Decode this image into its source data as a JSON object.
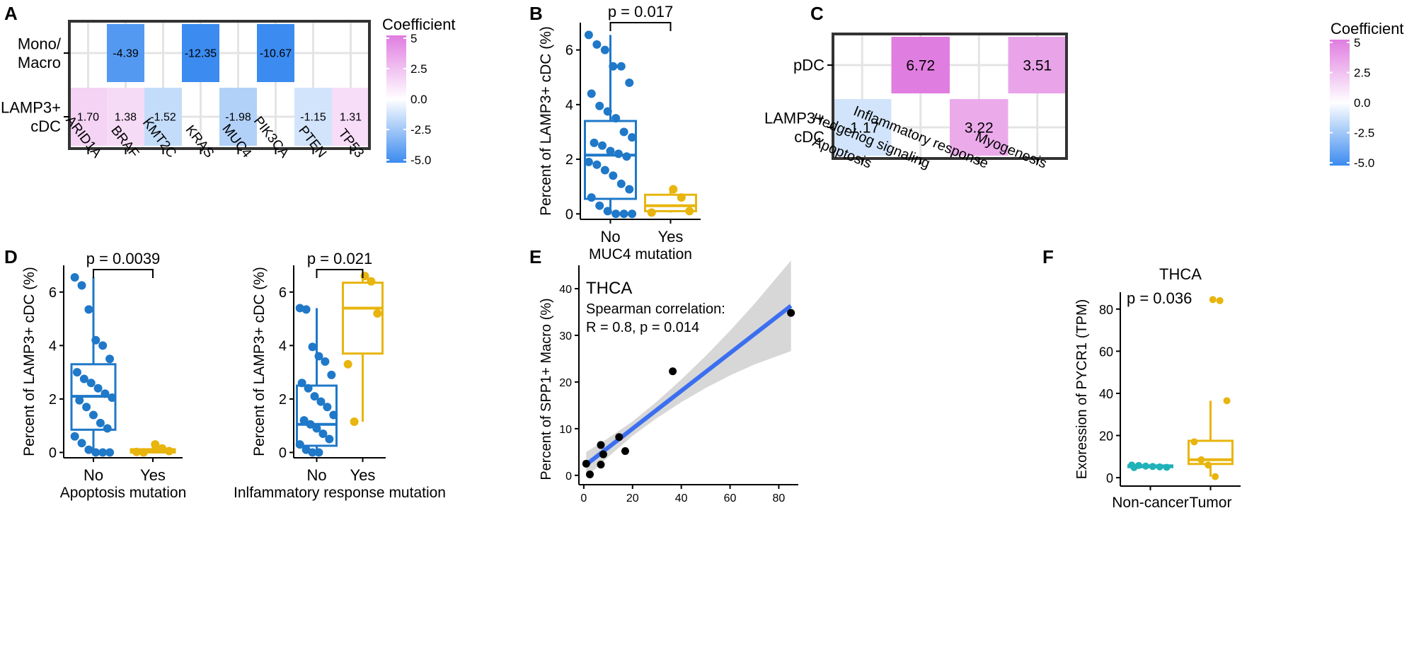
{
  "chart_data": [
    {
      "panel": "A",
      "type": "heatmap",
      "rows": [
        "Mono/\nMacro",
        "LAMP3+\ncDC"
      ],
      "cols": [
        "ARID1A",
        "BRAF",
        "KMT2C",
        "KRAS",
        "MUC4",
        "PIK3CA",
        "PTEN",
        "TP53"
      ],
      "values": [
        [
          null,
          -4.39,
          null,
          -12.35,
          null,
          -10.67,
          null,
          null
        ],
        [
          1.7,
          1.38,
          -1.52,
          null,
          -1.98,
          null,
          -1.15,
          1.31
        ]
      ],
      "labels": [
        [
          null,
          "-4.39",
          null,
          "-12.35",
          null,
          "-10.67",
          null,
          null
        ],
        [
          "1.70",
          "1.38",
          "-1.52",
          null,
          "-1.98",
          null,
          "-1.15",
          "1.31"
        ]
      ],
      "legend": {
        "title": "Coefficient",
        "ticks": [
          "5",
          "2.5",
          "0.0",
          "-2.5",
          "-5.0"
        ],
        "range": [
          -5,
          5
        ],
        "low_color": "#3b8bf0",
        "high_color": "#e07de0"
      }
    },
    {
      "panel": "B",
      "type": "boxplot",
      "xlabel": "MUC4 mutation",
      "ylabel": "Percent of LAMP3+ cDC (%)",
      "ylim": [
        -0.2,
        7
      ],
      "yticks": [
        0,
        2,
        4,
        6
      ],
      "pvalue": "p = 0.017",
      "groups": [
        {
          "name": "No",
          "color": "#1f78c8",
          "box": {
            "q1": 0.55,
            "median": 2.15,
            "q3": 3.4,
            "min": 0.0,
            "max": 6.55
          },
          "points": [
            6.55,
            6.2,
            6.0,
            5.4,
            5.4,
            4.8,
            4.4,
            3.95,
            3.75,
            3.5,
            3.0,
            2.8,
            2.6,
            2.5,
            2.3,
            2.2,
            2.1,
            1.9,
            1.8,
            1.6,
            1.4,
            1.1,
            0.9,
            0.6,
            0.3,
            0.1,
            0.0,
            0.0,
            0.0
          ]
        },
        {
          "name": "Yes",
          "color": "#e8b50e",
          "box": {
            "q1": 0.1,
            "median": 0.3,
            "q3": 0.7,
            "min": 0.05,
            "max": 0.9
          },
          "points": [
            0.9,
            0.6,
            0.1,
            0.05
          ]
        }
      ]
    },
    {
      "panel": "C",
      "type": "heatmap",
      "rows": [
        "pDC",
        "LAMP3+\ncDC"
      ],
      "cols": [
        "Apoptosis",
        "Hedgehog signaling",
        "Inflammatory response",
        "Myogenesis"
      ],
      "values": [
        [
          null,
          6.72,
          null,
          3.51
        ],
        [
          -1.17,
          null,
          3.22,
          null
        ]
      ],
      "labels": [
        [
          null,
          "6.72",
          null,
          "3.51"
        ],
        [
          "-1.17",
          null,
          "3.22",
          null
        ]
      ],
      "legend": {
        "title": "Coefficient",
        "ticks": [
          "5",
          "2.5",
          "0.0",
          "-2.5",
          "-5.0"
        ],
        "range": [
          -5,
          5
        ],
        "low_color": "#3b8bf0",
        "high_color": "#e07de0"
      }
    },
    {
      "panel": "D",
      "type": "boxplot",
      "xlabel": "Apoptosis mutation",
      "ylabel": "Percent of LAMP3+ cDC (%)",
      "ylim": [
        -0.2,
        7
      ],
      "yticks": [
        0,
        2,
        4,
        6
      ],
      "pvalue": "p = 0.0039",
      "groups": [
        {
          "name": "No",
          "color": "#1f78c8",
          "box": {
            "q1": 0.85,
            "median": 2.1,
            "q3": 3.3,
            "min": 0.0,
            "max": 6.55
          },
          "points": [
            6.55,
            6.25,
            5.35,
            4.2,
            4.0,
            3.5,
            3.0,
            2.75,
            2.6,
            2.4,
            2.2,
            2.05,
            1.95,
            1.7,
            1.4,
            1.1,
            0.9,
            0.6,
            0.35,
            0.1,
            0.0,
            0.0,
            0.0
          ]
        },
        {
          "name": "Yes",
          "color": "#e8b50e",
          "box": {
            "q1": 0.0,
            "median": 0.05,
            "q3": 0.12,
            "min": 0.0,
            "max": 0.3
          },
          "points": [
            0.3,
            0.15,
            0.05,
            0.02,
            0.0
          ]
        }
      ]
    },
    {
      "panel": "D2",
      "type": "boxplot",
      "xlabel": "Inlfammatory response mutation",
      "ylabel": "Percent of LAMP3+ cDC (%)",
      "ylim": [
        -0.2,
        7
      ],
      "yticks": [
        0,
        2,
        4,
        6
      ],
      "pvalue": "p = 0.021",
      "groups": [
        {
          "name": "No",
          "color": "#1f78c8",
          "box": {
            "q1": 0.25,
            "median": 1.05,
            "q3": 2.5,
            "min": 0.0,
            "max": 5.4
          },
          "points": [
            5.4,
            5.35,
            3.95,
            3.6,
            3.4,
            2.9,
            2.6,
            2.4,
            2.1,
            1.9,
            1.7,
            1.4,
            1.2,
            1.05,
            0.9,
            0.7,
            0.5,
            0.3,
            0.1,
            0.0,
            0.0
          ]
        },
        {
          "name": "Yes",
          "color": "#e8b50e",
          "box": {
            "q1": 3.7,
            "median": 5.4,
            "q3": 6.35,
            "min": 1.15,
            "max": 6.6
          },
          "points": [
            6.6,
            6.4,
            5.2,
            3.3,
            1.15
          ]
        }
      ]
    },
    {
      "panel": "E",
      "type": "scatter",
      "title": "THCA",
      "annotation": [
        "Spearman correlation:",
        "R = 0.8, p = 0.014"
      ],
      "xlabel": "",
      "ylabel": "Percent of SPP1+ Macro (%)",
      "xlim": [
        -2,
        88
      ],
      "ylim": [
        -2,
        45
      ],
      "xticks": [
        0,
        20,
        40,
        60,
        80
      ],
      "yticks": [
        0,
        10,
        20,
        30,
        40
      ],
      "points": [
        [
          1,
          2.5
        ],
        [
          2.5,
          0.2
        ],
        [
          7,
          6.5
        ],
        [
          7,
          2.3
        ],
        [
          8,
          4.5
        ],
        [
          14.5,
          8.2
        ],
        [
          17,
          5.2
        ],
        [
          36.5,
          22.3
        ],
        [
          85,
          34.8
        ]
      ],
      "fit": {
        "intercept": 1.9,
        "slope": 0.405,
        "line_color": "#3b6ff0",
        "band_color": "#d0d0d0"
      }
    },
    {
      "panel": "F",
      "type": "boxplot",
      "title": "THCA",
      "xlabel": "",
      "ylabel": "Exoression of PYCR1 (TPM)",
      "ylim": [
        -4,
        88
      ],
      "yticks": [
        0,
        20,
        40,
        60,
        80
      ],
      "pvalue": "p = 0.036",
      "groups": [
        {
          "name": "Non-cancer",
          "color": "#20b2b8",
          "box": {
            "q1": 5.0,
            "median": 5.3,
            "q3": 5.8,
            "min": 4.8,
            "max": 6.0
          },
          "points": [
            6.0,
            5.8,
            5.5,
            5.3,
            5.1,
            4.9,
            4.8
          ]
        },
        {
          "name": "Tumor",
          "color": "#e8b50e",
          "box": {
            "q1": 6.5,
            "median": 8.5,
            "q3": 17.5,
            "min": 0.5,
            "max": 36.5
          },
          "points": [
            84.5,
            84.0,
            36.5,
            17.0,
            8.5,
            6.0,
            0.5
          ]
        }
      ]
    }
  ],
  "panel_letters": [
    "A",
    "B",
    "C",
    "D",
    "E",
    "F"
  ]
}
